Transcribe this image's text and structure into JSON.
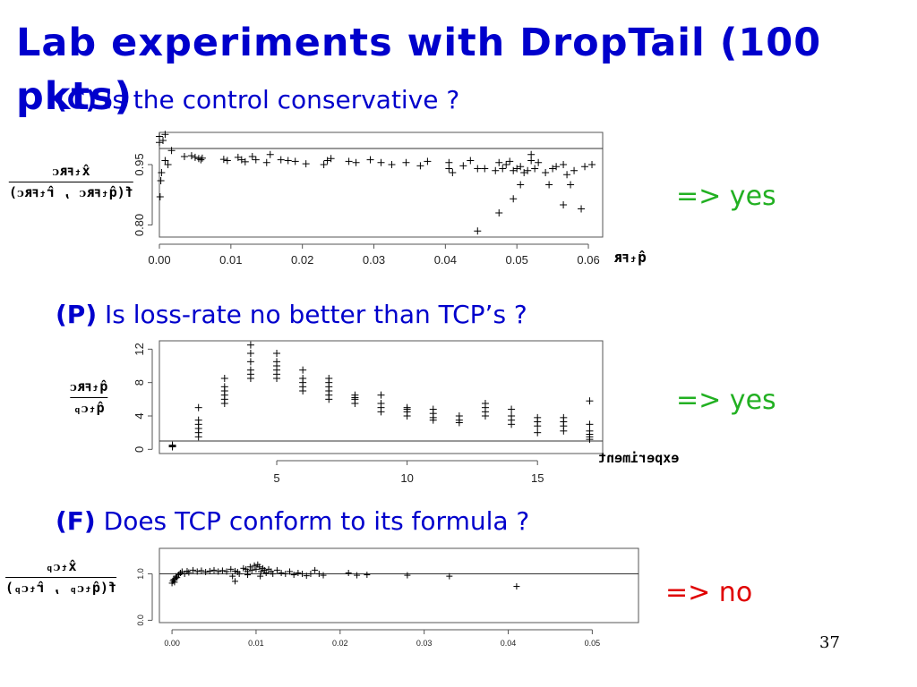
{
  "slide": {
    "title": "Lab experiments with DropTail (100 pkts)",
    "page_number": "37",
    "questions": [
      {
        "tag": "(C)",
        "text": "Is the control conservative ?",
        "tag_color": "#0000cc"
      },
      {
        "tag": "(P)",
        "text": "Is loss-rate no better than TCP’s ?",
        "tag_color": "#0000cc"
      },
      {
        "tag": "(F)",
        "text": "Does TCP conform to its formula ?",
        "tag_color": "#0000cc"
      }
    ],
    "answers": [
      {
        "text": "=> yes",
        "color": "#22b022"
      },
      {
        "text": "=> yes",
        "color": "#22b022"
      },
      {
        "text": "=> no",
        "color": "#e00000"
      }
    ],
    "colors": {
      "title": "#0000cc",
      "question_text": "#0000cc"
    }
  },
  "labels": {
    "c_ratio_num": "x̂ₜꜰʀᴄ",
    "c_ratio_den": "f(q̂ₜꜰʀᴄ , r̂ₜꜰʀᴄ)",
    "c_xlabel": "q̂ₜꜰʀ",
    "p_ratio_num": "q̂ₜꜰʀᴄ",
    "p_ratio_den": "q̂ₜᴄₚ",
    "p_xlabel": "experiment",
    "f_ratio_num": "x̂ₜᴄₚ",
    "f_ratio_den": "f(q̂ₜᴄₚ , r̂ₜᴄₚ)"
  },
  "chart_data": [
    {
      "id": "C",
      "type": "scatter",
      "xlim": [
        0,
        0.062
      ],
      "ylim": [
        0.77,
        1.03
      ],
      "xticks": [
        0.0,
        0.01,
        0.02,
        0.03,
        0.04,
        0.05,
        0.06
      ],
      "xtick_labels": [
        "0.00",
        "0.01",
        "0.02",
        "0.03",
        "0.04",
        "0.05",
        "0.06"
      ],
      "yticks": [
        0.8,
        0.95
      ],
      "ytick_labels": [
        "0.80",
        "0.95"
      ],
      "hline": 0.99,
      "marker": "+",
      "points": [
        [
          0.0,
          1.02
        ],
        [
          0.0005,
          1.01
        ],
        [
          0.0008,
          1.025
        ],
        [
          0.0,
          1.005
        ],
        [
          0.0003,
          0.93
        ],
        [
          0.0002,
          0.91
        ],
        [
          0.0001,
          0.87
        ],
        [
          0.0008,
          0.96
        ],
        [
          0.0012,
          0.95
        ],
        [
          0.0017,
          0.985
        ],
        [
          0.0035,
          0.97
        ],
        [
          0.0045,
          0.972
        ],
        [
          0.005,
          0.968
        ],
        [
          0.0055,
          0.965
        ],
        [
          0.0058,
          0.962
        ],
        [
          0.006,
          0.966
        ],
        [
          0.009,
          0.963
        ],
        [
          0.0095,
          0.96
        ],
        [
          0.011,
          0.968
        ],
        [
          0.0115,
          0.962
        ],
        [
          0.012,
          0.957
        ],
        [
          0.013,
          0.97
        ],
        [
          0.0135,
          0.962
        ],
        [
          0.015,
          0.955
        ],
        [
          0.0155,
          0.975
        ],
        [
          0.017,
          0.962
        ],
        [
          0.018,
          0.96
        ],
        [
          0.019,
          0.958
        ],
        [
          0.0205,
          0.952
        ],
        [
          0.023,
          0.95
        ],
        [
          0.0235,
          0.96
        ],
        [
          0.024,
          0.965
        ],
        [
          0.0265,
          0.958
        ],
        [
          0.0275,
          0.955
        ],
        [
          0.0295,
          0.962
        ],
        [
          0.031,
          0.955
        ],
        [
          0.0325,
          0.95
        ],
        [
          0.0345,
          0.955
        ],
        [
          0.0365,
          0.947
        ],
        [
          0.0375,
          0.958
        ],
        [
          0.0405,
          0.94
        ],
        [
          0.0405,
          0.955
        ],
        [
          0.041,
          0.93
        ],
        [
          0.0425,
          0.947
        ],
        [
          0.0435,
          0.96
        ],
        [
          0.0445,
          0.94
        ],
        [
          0.0455,
          0.94
        ],
        [
          0.047,
          0.935
        ],
        [
          0.0475,
          0.955
        ],
        [
          0.048,
          0.94
        ],
        [
          0.0485,
          0.95
        ],
        [
          0.049,
          0.958
        ],
        [
          0.0495,
          0.935
        ],
        [
          0.05,
          0.94
        ],
        [
          0.0505,
          0.945
        ],
        [
          0.051,
          0.93
        ],
        [
          0.0515,
          0.935
        ],
        [
          0.052,
          0.96
        ],
        [
          0.0525,
          0.94
        ],
        [
          0.053,
          0.955
        ],
        [
          0.054,
          0.93
        ],
        [
          0.055,
          0.94
        ],
        [
          0.0555,
          0.945
        ],
        [
          0.0565,
          0.95
        ],
        [
          0.057,
          0.925
        ],
        [
          0.058,
          0.935
        ],
        [
          0.0595,
          0.945
        ],
        [
          0.0605,
          0.95
        ],
        [
          0.0445,
          0.785
        ],
        [
          0.0475,
          0.83
        ],
        [
          0.0495,
          0.865
        ],
        [
          0.0505,
          0.9
        ],
        [
          0.0545,
          0.9
        ],
        [
          0.0565,
          0.85
        ],
        [
          0.0575,
          0.9
        ],
        [
          0.059,
          0.84
        ],
        [
          0.052,
          0.975
        ]
      ]
    },
    {
      "id": "P",
      "type": "scatter",
      "xlim": [
        0.5,
        17.5
      ],
      "ylim": [
        -0.5,
        13
      ],
      "xticks": [
        5,
        10,
        15
      ],
      "xtick_labels": [
        "5",
        "10",
        "15"
      ],
      "yticks": [
        0,
        4,
        8,
        12
      ],
      "ytick_labels": [
        "0",
        "4",
        "8",
        "12"
      ],
      "hline": 1,
      "marker": "+",
      "points": [
        [
          1,
          0.4
        ],
        [
          1,
          0.3
        ],
        [
          1,
          0.5
        ],
        [
          2,
          5.0
        ],
        [
          2,
          3.5
        ],
        [
          2,
          3.0
        ],
        [
          2,
          2.5
        ],
        [
          2,
          2.0
        ],
        [
          2,
          1.5
        ],
        [
          3,
          8.5
        ],
        [
          3,
          7.5
        ],
        [
          3,
          7.0
        ],
        [
          3,
          6.5
        ],
        [
          3,
          6.0
        ],
        [
          3,
          5.5
        ],
        [
          4,
          12.5
        ],
        [
          4,
          11.5
        ],
        [
          4,
          10.5
        ],
        [
          4,
          9.5
        ],
        [
          4,
          9.0
        ],
        [
          4,
          8.5
        ],
        [
          5,
          11.5
        ],
        [
          5,
          10.5
        ],
        [
          5,
          10.0
        ],
        [
          5,
          9.5
        ],
        [
          5,
          9.0
        ],
        [
          5,
          8.5
        ],
        [
          6,
          9.5
        ],
        [
          6,
          8.5
        ],
        [
          6,
          8.0
        ],
        [
          6,
          7.5
        ],
        [
          6,
          7.0
        ],
        [
          7,
          8.5
        ],
        [
          7,
          8.0
        ],
        [
          7,
          7.5
        ],
        [
          7,
          7.0
        ],
        [
          7,
          6.5
        ],
        [
          7,
          6.0
        ],
        [
          8,
          6.5
        ],
        [
          8,
          6.0
        ],
        [
          8,
          5.5
        ],
        [
          8,
          6.2
        ],
        [
          9,
          6.5
        ],
        [
          9,
          5.5
        ],
        [
          9,
          5.0
        ],
        [
          9,
          4.5
        ],
        [
          10,
          5.0
        ],
        [
          10,
          4.5
        ],
        [
          10,
          4.0
        ],
        [
          10,
          4.8
        ],
        [
          11,
          4.8
        ],
        [
          11,
          4.3
        ],
        [
          11,
          3.8
        ],
        [
          11,
          3.5
        ],
        [
          12,
          4.0
        ],
        [
          12,
          3.5
        ],
        [
          12,
          3.2
        ],
        [
          13,
          5.5
        ],
        [
          13,
          5.0
        ],
        [
          13,
          4.5
        ],
        [
          13,
          4.0
        ],
        [
          14,
          4.8
        ],
        [
          14,
          4.0
        ],
        [
          14,
          3.5
        ],
        [
          14,
          3.0
        ],
        [
          15,
          3.8
        ],
        [
          15,
          3.3
        ],
        [
          15,
          2.8
        ],
        [
          15,
          2.0
        ],
        [
          16,
          3.8
        ],
        [
          16,
          3.3
        ],
        [
          16,
          2.8
        ],
        [
          16,
          2.2
        ],
        [
          17,
          5.8
        ],
        [
          17,
          3.0
        ],
        [
          17,
          2.2
        ],
        [
          17,
          1.8
        ],
        [
          17,
          1.5
        ],
        [
          17,
          1.2
        ]
      ]
    },
    {
      "id": "F",
      "type": "scatter",
      "xlim": [
        -0.0015,
        0.0555
      ],
      "ylim": [
        -0.05,
        1.55
      ],
      "xticks": [
        0.0,
        0.01,
        0.02,
        0.03,
        0.04,
        0.05
      ],
      "xtick_labels": [
        "0.00",
        "0.01",
        "0.02",
        "0.03",
        "0.04",
        "0.05"
      ],
      "yticks": [
        0.0,
        1.0
      ],
      "ytick_labels": [
        "0.0",
        "1.0"
      ],
      "hline": 1.0,
      "marker": "+",
      "points": [
        [
          0.0,
          0.8
        ],
        [
          0.0001,
          0.85
        ],
        [
          0.0002,
          0.88
        ],
        [
          0.0003,
          0.82
        ],
        [
          0.0004,
          0.9
        ],
        [
          0.0005,
          0.95
        ],
        [
          0.0006,
          0.92
        ],
        [
          0.0008,
          0.98
        ],
        [
          0.001,
          1.02
        ],
        [
          0.0012,
          1.05
        ],
        [
          0.0015,
          1.0
        ],
        [
          0.0018,
          1.06
        ],
        [
          0.002,
          1.03
        ],
        [
          0.0025,
          1.08
        ],
        [
          0.003,
          1.05
        ],
        [
          0.0035,
          1.07
        ],
        [
          0.004,
          1.04
        ],
        [
          0.0045,
          1.06
        ],
        [
          0.005,
          1.08
        ],
        [
          0.0055,
          1.05
        ],
        [
          0.006,
          1.07
        ],
        [
          0.0065,
          1.05
        ],
        [
          0.007,
          1.1
        ],
        [
          0.0072,
          0.95
        ],
        [
          0.0075,
          1.06
        ],
        [
          0.0078,
          1.04
        ],
        [
          0.008,
          1.0
        ],
        [
          0.0085,
          1.12
        ],
        [
          0.0088,
          1.1
        ],
        [
          0.009,
          1.05
        ],
        [
          0.0093,
          1.15
        ],
        [
          0.0095,
          1.08
        ],
        [
          0.0098,
          1.18
        ],
        [
          0.01,
          1.1
        ],
        [
          0.0102,
          1.2
        ],
        [
          0.0104,
          1.15
        ],
        [
          0.0106,
          1.05
        ],
        [
          0.0108,
          1.12
        ],
        [
          0.011,
          1.08
        ],
        [
          0.0112,
          1.02
        ],
        [
          0.0115,
          1.1
        ],
        [
          0.0118,
          1.05
        ],
        [
          0.012,
          1.0
        ],
        [
          0.0125,
          1.08
        ],
        [
          0.013,
          1.02
        ],
        [
          0.0135,
          1.0
        ],
        [
          0.014,
          1.05
        ],
        [
          0.0145,
          0.98
        ],
        [
          0.015,
          1.02
        ],
        [
          0.0155,
          1.0
        ],
        [
          0.016,
          0.96
        ],
        [
          0.0165,
          1.0
        ],
        [
          0.017,
          1.08
        ],
        [
          0.0175,
          1.0
        ],
        [
          0.018,
          0.97
        ],
        [
          0.021,
          1.02
        ],
        [
          0.022,
          0.97
        ],
        [
          0.0232,
          0.98
        ],
        [
          0.028,
          0.97
        ],
        [
          0.033,
          0.95
        ],
        [
          0.041,
          0.73
        ],
        [
          0.0075,
          0.84
        ],
        [
          0.009,
          0.98
        ],
        [
          0.0105,
          0.95
        ]
      ]
    }
  ]
}
